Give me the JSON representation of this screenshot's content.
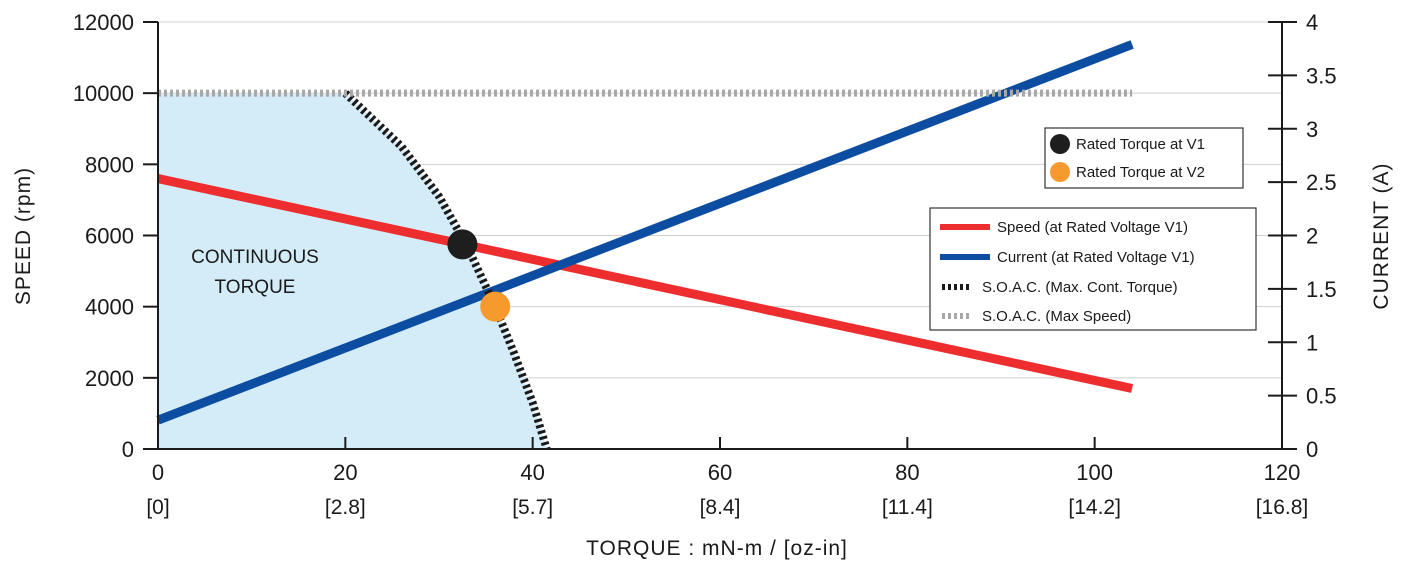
{
  "chart_data": {
    "type": "line",
    "x_axis": {
      "label": "TORQUE : mN-m / [oz-in]",
      "range": [
        0,
        120
      ],
      "ticks": [
        0,
        20,
        40,
        60,
        80,
        100,
        120
      ],
      "sub_labels": [
        "[0]",
        "[2.8]",
        "[5.7]",
        "[8.4]",
        "[11.4]",
        "[14.2]",
        "[16.8]"
      ]
    },
    "y_axis_left": {
      "label": "SPEED (rpm)",
      "range": [
        0,
        12000
      ],
      "ticks": [
        0,
        2000,
        4000,
        6000,
        8000,
        10000,
        12000
      ]
    },
    "y_axis_right": {
      "label": "CURRENT (A)",
      "range": [
        0,
        4
      ],
      "ticks": [
        0,
        0.5,
        1,
        1.5,
        2,
        2.5,
        3,
        3.5,
        4
      ]
    },
    "grid": "horizontal",
    "region": {
      "label_line1": "CONTINUOUS",
      "label_line2": "TORQUE",
      "color": "#d4ebf8"
    },
    "series": [
      {
        "name": "Speed (at Rated Voltage V1)",
        "color": "#ee2e2e",
        "axis": "left",
        "style": "solid",
        "points": [
          [
            0,
            7600
          ],
          [
            104,
            1700
          ]
        ]
      },
      {
        "name": "Current (at Rated Voltage V1)",
        "color": "#0d4da1",
        "axis": "right",
        "style": "solid",
        "points": [
          [
            0,
            0.27
          ],
          [
            104,
            3.79
          ]
        ]
      },
      {
        "name": "S.O.A.C. (Max. Cont. Torque)",
        "color": "#1a1a1a",
        "axis": "left",
        "style": "dashed",
        "points": [
          [
            20,
            10000
          ],
          [
            26,
            8500
          ],
          [
            30,
            7100
          ],
          [
            33,
            5700
          ],
          [
            36,
            4000
          ],
          [
            38,
            2700
          ],
          [
            40,
            1300
          ],
          [
            41.5,
            0
          ]
        ]
      },
      {
        "name": "S.O.A.C. (Max Speed)",
        "color": "#a8a8a8",
        "axis": "left",
        "style": "dashed",
        "points": [
          [
            0,
            10000
          ],
          [
            104,
            10000
          ]
        ]
      }
    ],
    "markers": [
      {
        "name": "Rated Torque at V1",
        "color": "#1e1e1e",
        "x": 32.5,
        "y": 5750
      },
      {
        "name": "Rated Torque at V2",
        "color": "#f79a2e",
        "x": 36,
        "y": 4000
      }
    ],
    "legend_position": "right"
  }
}
